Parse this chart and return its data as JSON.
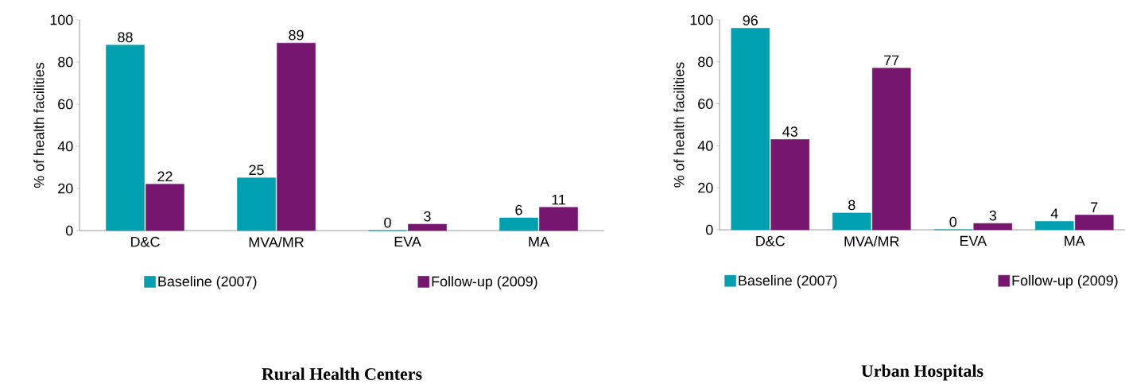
{
  "chart_data": [
    {
      "type": "bar",
      "title": "Rural Health Centers",
      "ylabel": "% of health facilities",
      "categories": [
        "D&C",
        "MVA/MR",
        "EVA",
        "MA"
      ],
      "series": [
        {
          "name": "Baseline (2007)",
          "color": "#00a0b0",
          "values": [
            88,
            25,
            0,
            6
          ]
        },
        {
          "name": "Follow-up (2009)",
          "color": "#76166f",
          "values": [
            22,
            89,
            3,
            11
          ]
        }
      ],
      "ylim": [
        0,
        100
      ],
      "yticks": [
        0,
        20,
        40,
        60,
        80,
        100
      ],
      "data_labels": true,
      "legend": "bottom"
    },
    {
      "type": "bar",
      "title": "Urban Hospitals",
      "ylabel": "% of health facilities",
      "categories": [
        "D&C",
        "MVA/MR",
        "EVA",
        "MA"
      ],
      "series": [
        {
          "name": "Baseline (2007)",
          "color": "#00a0b0",
          "values": [
            96,
            8,
            0,
            4
          ]
        },
        {
          "name": "Follow-up (2009)",
          "color": "#76166f",
          "values": [
            43,
            77,
            3,
            7
          ]
        }
      ],
      "ylim": [
        0,
        100
      ],
      "yticks": [
        0,
        20,
        40,
        60,
        80,
        100
      ],
      "data_labels": true,
      "legend": "bottom"
    }
  ]
}
